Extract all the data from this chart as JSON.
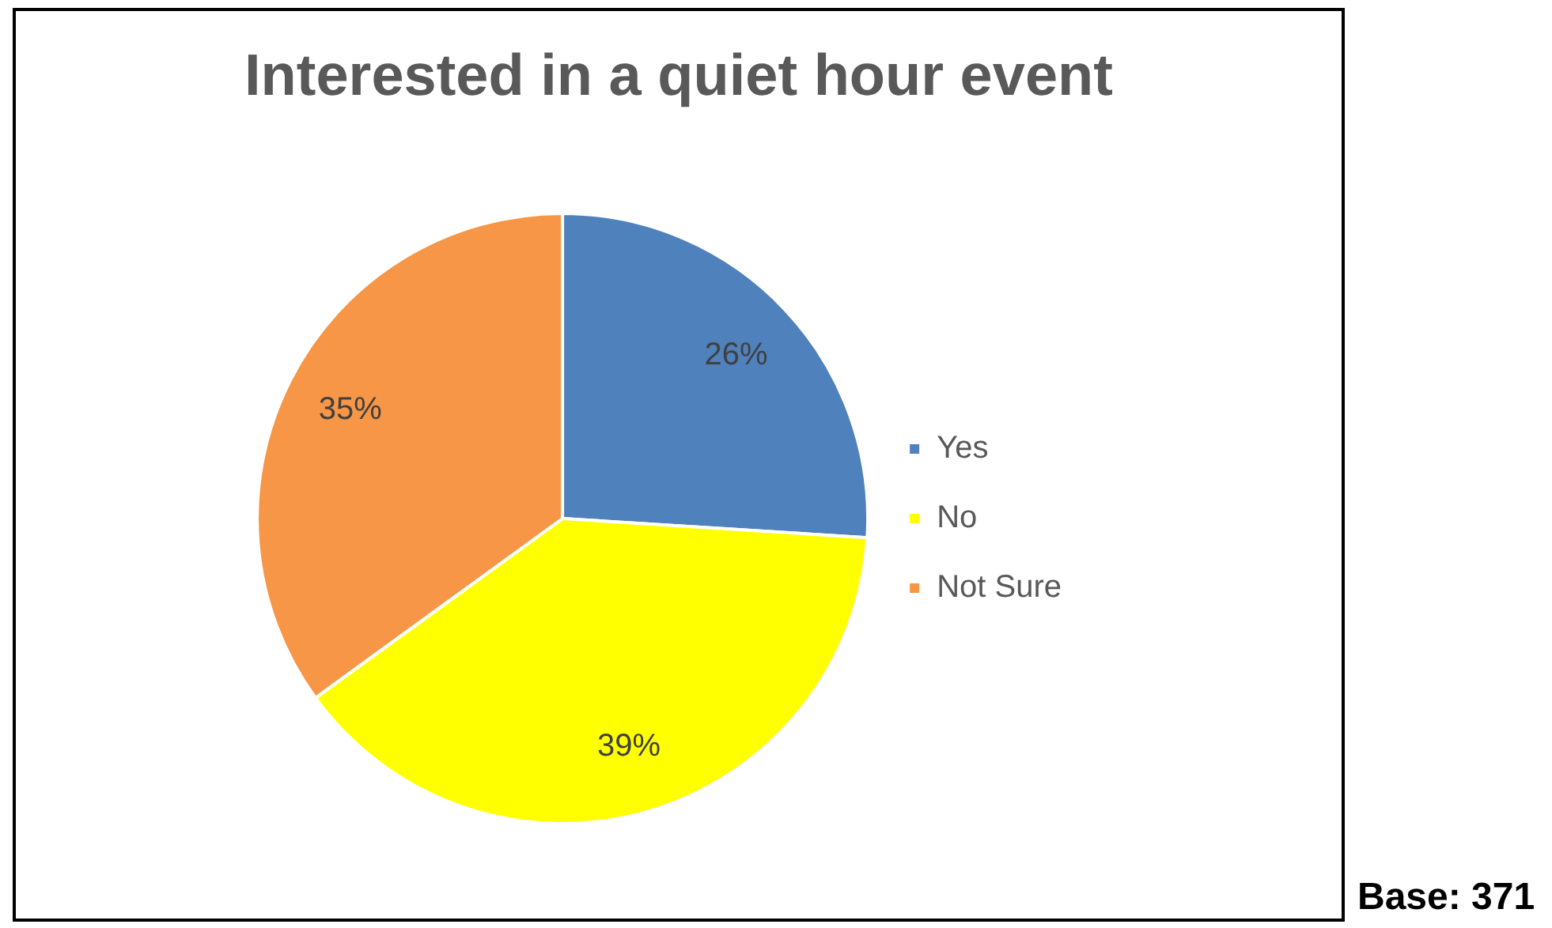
{
  "chart_data": {
    "type": "pie",
    "title": "Interested in a quiet hour event",
    "categories": [
      "Yes",
      "No",
      "Not Sure"
    ],
    "values": [
      26,
      39,
      35
    ],
    "colors": [
      "#4f81bd",
      "#ffff00",
      "#f79646"
    ],
    "value_labels": [
      "26%",
      "39%",
      "35%"
    ],
    "legend": "right",
    "annotations": [
      "Base: 371"
    ]
  }
}
